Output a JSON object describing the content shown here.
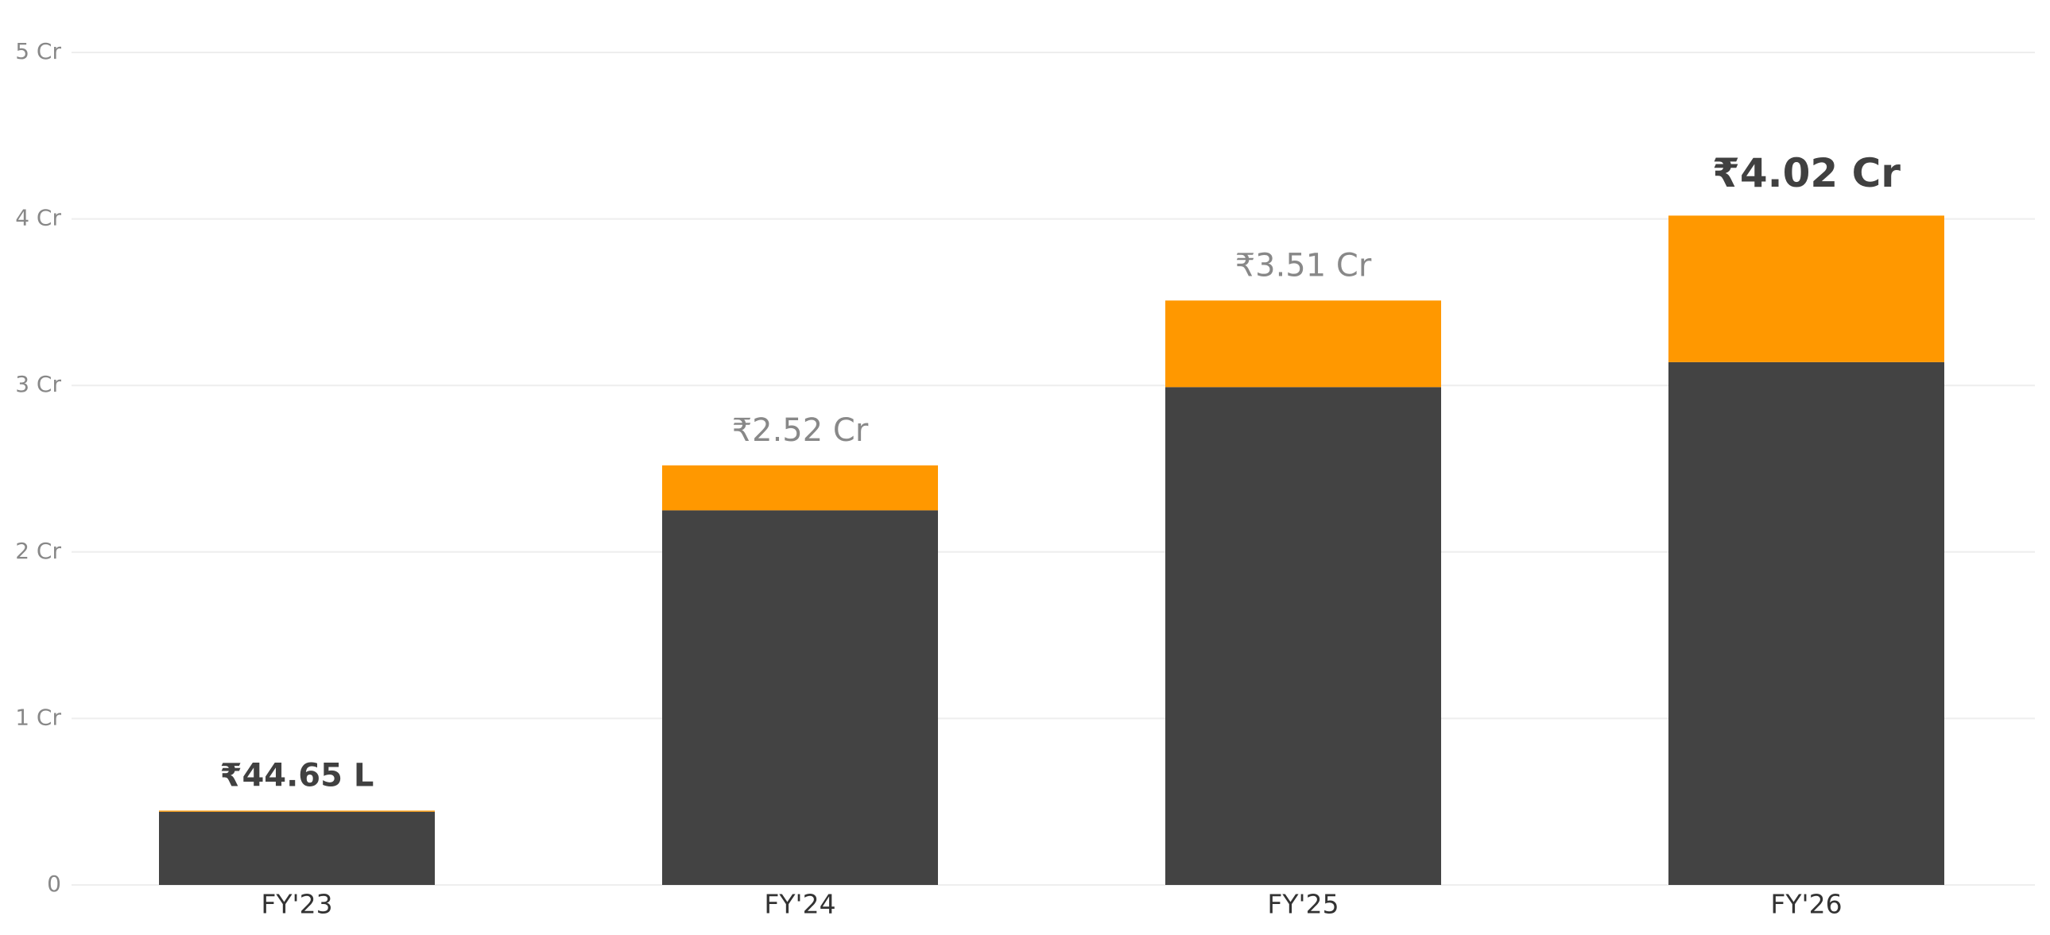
{
  "chart_data": {
    "type": "stacked_bar",
    "categories": [
      "FY'23",
      "FY'24",
      "FY'25",
      "FY'26"
    ],
    "series": [
      {
        "color": "#434343",
        "values": [
          0.44,
          2.25,
          2.99,
          3.14
        ]
      },
      {
        "color": "#ff9800",
        "values": [
          0.0065,
          0.27,
          0.52,
          0.88
        ]
      }
    ],
    "totals": [
      0.4465,
      2.52,
      3.51,
      4.02
    ],
    "total_labels": [
      "₹44.65 L",
      "₹2.52 Cr",
      "₹3.51 Cr",
      "₹4.02 Cr"
    ],
    "ylim": [
      0,
      5
    ],
    "yticks": [
      0,
      {
        "value": 1,
        "label": "1 Cr"
      },
      {
        "value": 2,
        "label": "2 Cr"
      },
      {
        "value": 3,
        "label": "3 Cr"
      },
      {
        "value": 4,
        "label": "4 Cr"
      },
      {
        "value": 5,
        "label": "5 Cr"
      }
    ],
    "grid": true
  }
}
